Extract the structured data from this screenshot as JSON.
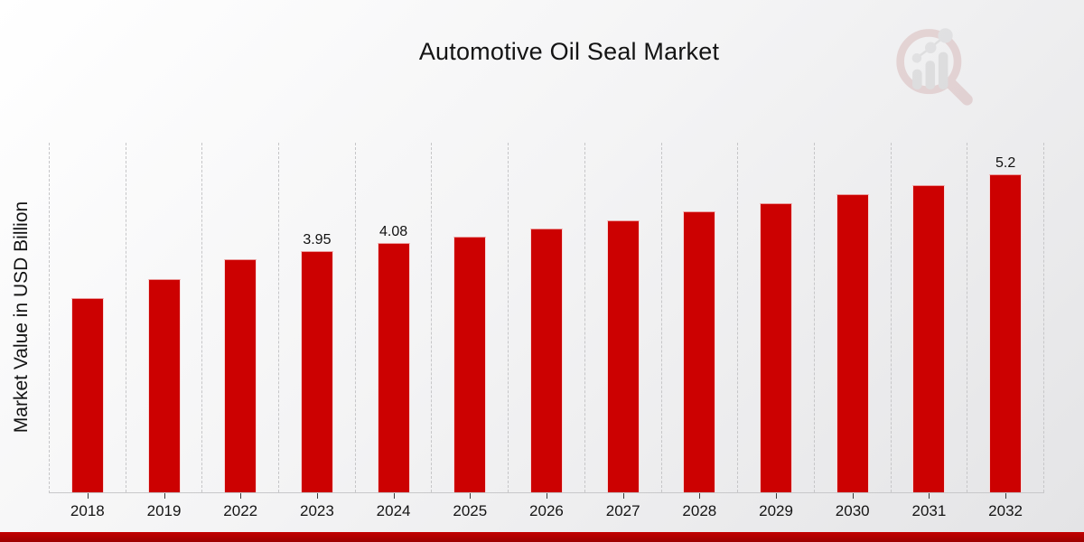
{
  "header": {
    "title": "Automotive Oil Seal Market",
    "logo_name": "market-research-magnifier-logo"
  },
  "chart_data": {
    "type": "bar",
    "title": "Automotive Oil Seal Market",
    "xlabel": "",
    "ylabel": "Market Value in USD Billion",
    "categories": [
      "2018",
      "2019",
      "2022",
      "2023",
      "2024",
      "2025",
      "2026",
      "2027",
      "2028",
      "2029",
      "2030",
      "2031",
      "2032"
    ],
    "values": [
      3.18,
      3.49,
      3.82,
      3.95,
      4.08,
      4.19,
      4.31,
      4.45,
      4.59,
      4.73,
      4.88,
      5.03,
      5.2
    ],
    "bar_labels": [
      "",
      "",
      "",
      "3.95",
      "4.08",
      "",
      "",
      "",
      "",
      "",
      "",
      "",
      "5.2"
    ],
    "ylim": [
      0,
      5.72
    ],
    "grid": "vertical-dashed",
    "legend": "none",
    "bar_color": "#cc0101",
    "accent_strip_color": "#b00000"
  }
}
